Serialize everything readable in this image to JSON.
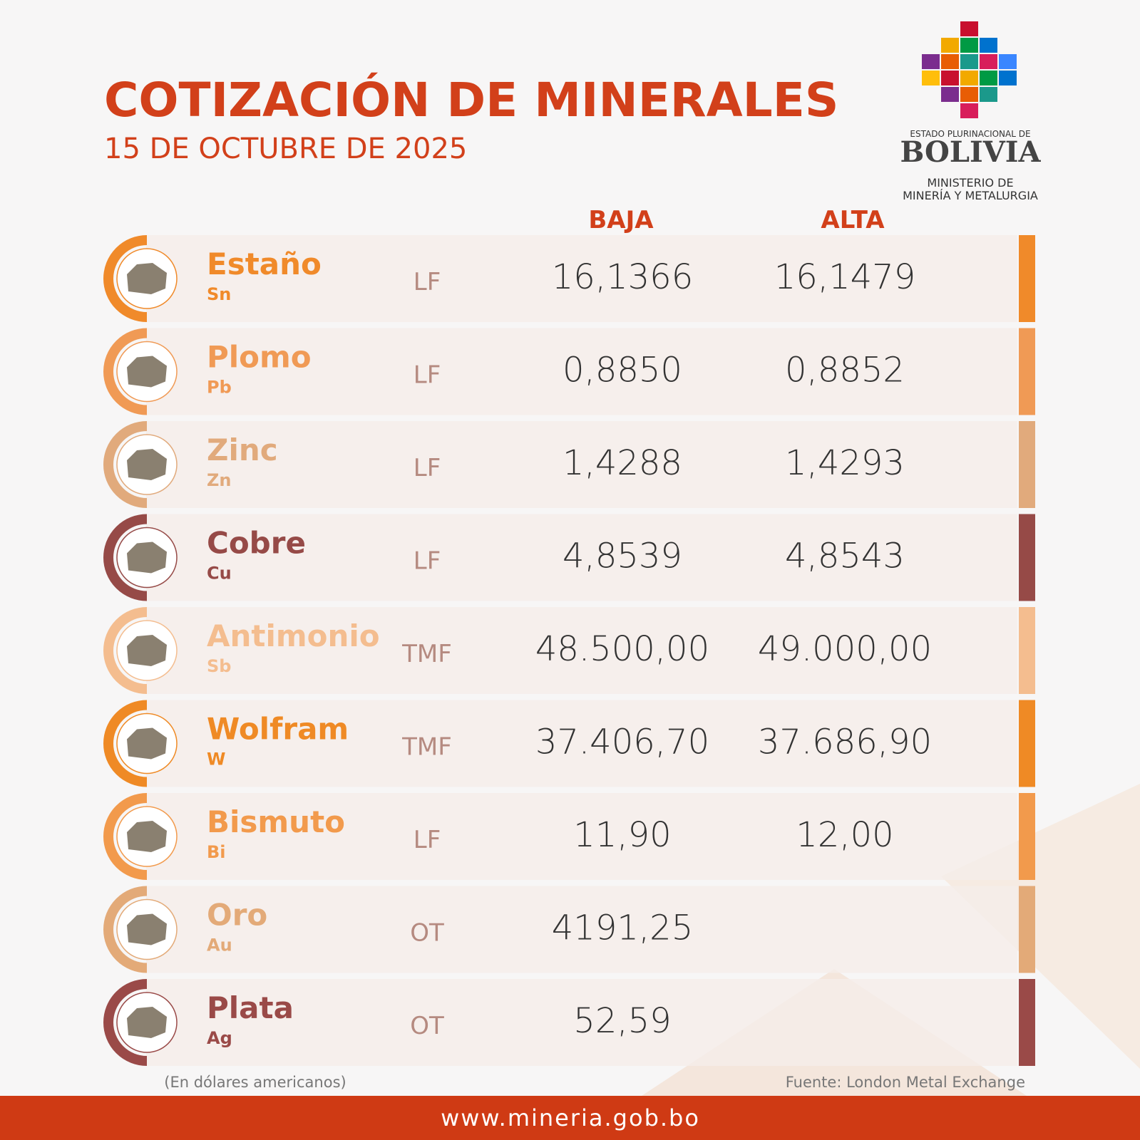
{
  "header": {
    "title": "COTIZACIÓN DE MINERALES",
    "date": "15 DE OCTUBRE DE 2025"
  },
  "logo": {
    "line1": "ESTADO PLURINACIONAL DE",
    "line2": "BOLIVIA",
    "line3": "MINISTERIO DE",
    "line4": "MINERÍA Y METALURGIA"
  },
  "table": {
    "columns": [
      "BAJA",
      "ALTA"
    ],
    "rows": [
      {
        "name": "Estaño",
        "symbol": "Sn",
        "unit": "LF",
        "baja": "16,1366",
        "alta": "16,1479",
        "color": "#f08a2a"
      },
      {
        "name": "Plomo",
        "symbol": "Pb",
        "unit": "LF",
        "baja": "0,8850",
        "alta": "0,8852",
        "color": "#f09a55"
      },
      {
        "name": "Zinc",
        "symbol": "Zn",
        "unit": "LF",
        "baja": "1,4288",
        "alta": "1,4293",
        "color": "#e1aa7c"
      },
      {
        "name": "Cobre",
        "symbol": "Cu",
        "unit": "LF",
        "baja": "4,8539",
        "alta": "4,8543",
        "color": "#964a47"
      },
      {
        "name": "Antimonio",
        "symbol": "Sb",
        "unit": "TMF",
        "baja": "48.500,00",
        "alta": "49.000,00",
        "color": "#f4bd8f"
      },
      {
        "name": "Wolfram",
        "symbol": "W",
        "unit": "TMF",
        "baja": "37.406,70",
        "alta": "37.686,90",
        "color": "#ef8a25"
      },
      {
        "name": "Bismuto",
        "symbol": "Bi",
        "unit": "LF",
        "baja": "11,90",
        "alta": "12,00",
        "color": "#f29a4c"
      },
      {
        "name": "Oro",
        "symbol": "Au",
        "unit": "OT",
        "baja": "4191,25",
        "color": "#e3aa78"
      },
      {
        "name": "Plata",
        "symbol": "Ag",
        "unit": "OT",
        "baja": "52,59",
        "color": "#9a4a48"
      }
    ]
  },
  "footer": {
    "note": "(En dólares americanos)",
    "source": "Fuente: London Metal Exchange",
    "website": "www.mineria.gob.bo"
  }
}
